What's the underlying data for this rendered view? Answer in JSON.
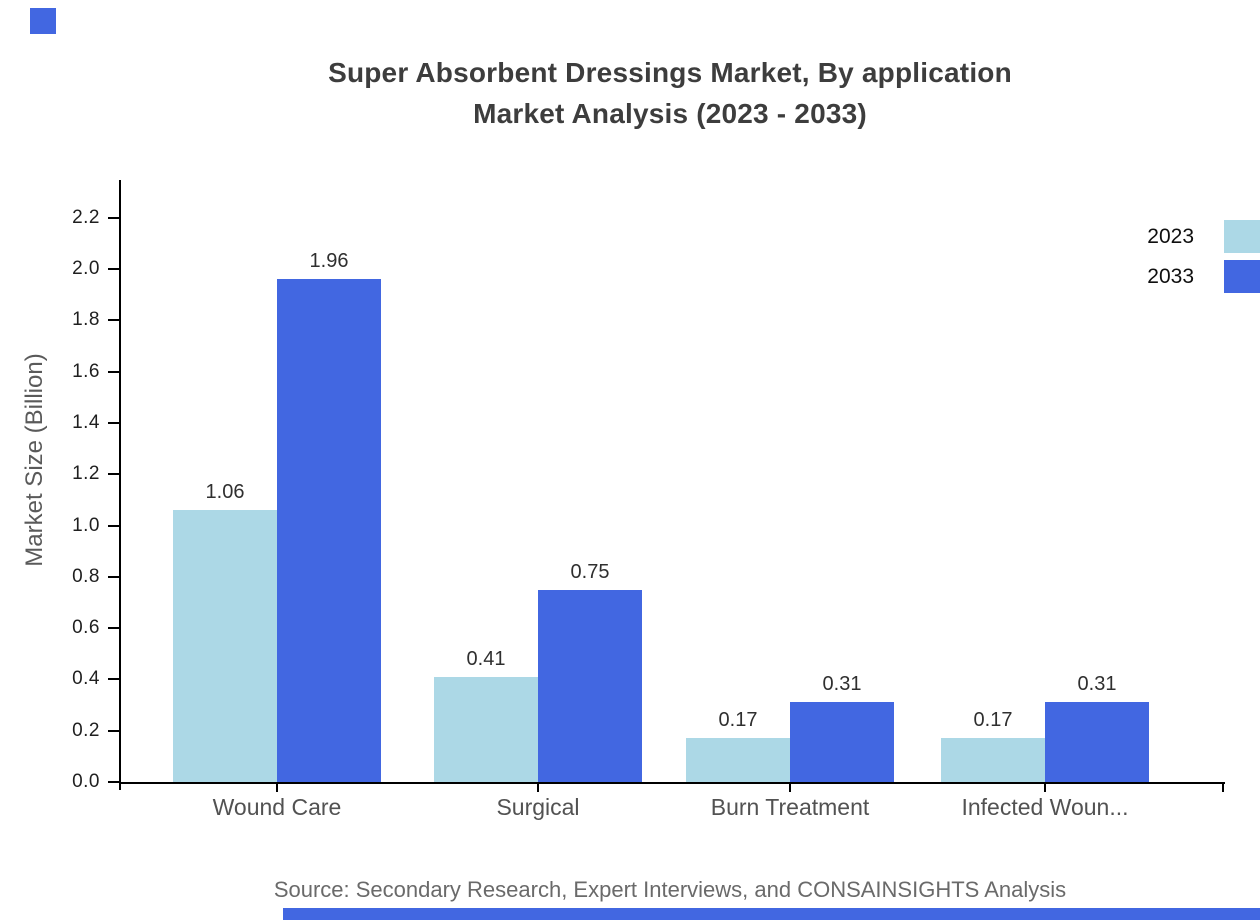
{
  "title": {
    "line1": "Super Absorbent Dressings Market, By application",
    "line2": "Market Analysis (2023 - 2033)"
  },
  "chart_data": {
    "type": "bar",
    "categories": [
      "Wound Care",
      "Surgical",
      "Burn Treatment",
      "Infected Woun..."
    ],
    "series": [
      {
        "name": "2023",
        "color": "#ACD8E6",
        "values": [
          1.06,
          0.41,
          0.17,
          0.17
        ]
      },
      {
        "name": "2033",
        "color": "#4267E1",
        "values": [
          1.96,
          0.75,
          0.31,
          0.31
        ]
      }
    ],
    "ylabel": "Market Size (Billion)",
    "xlabel": "",
    "yticks": [
      "0.0",
      "0.2",
      "0.4",
      "0.6",
      "0.8",
      "1.0",
      "1.2",
      "1.4",
      "1.6",
      "1.8",
      "2.0",
      "2.2"
    ],
    "ylim": [
      0,
      2.35
    ],
    "grid": false,
    "legend_position": "top-right",
    "value_labels": true
  },
  "source": "Source: Secondary Research, Expert Interviews, and CONSAINSIGHTS Analysis",
  "branding": {
    "corner_square_color": "#4267E1",
    "bottom_bar_color": "#4267E1"
  }
}
